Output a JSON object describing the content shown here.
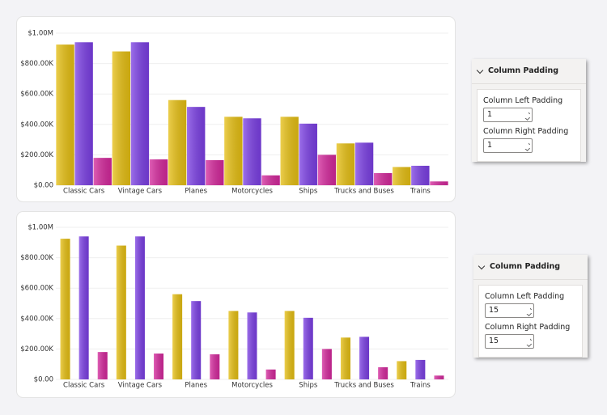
{
  "chart_data": [
    {
      "type": "bar",
      "categories": [
        "Classic Cars",
        "Vintage Cars",
        "Planes",
        "Motorcycles",
        "Ships",
        "Trucks and Buses",
        "Trains"
      ],
      "series": [
        {
          "color": "#e6bf12",
          "values": [
            925000,
            880000,
            560000,
            450000,
            450000,
            275000,
            120000
          ]
        },
        {
          "color": "#7b3fe4",
          "values": [
            940000,
            940000,
            515000,
            440000,
            405000,
            280000,
            128000
          ]
        },
        {
          "color": "#d4289c",
          "values": [
            180000,
            170000,
            165000,
            65000,
            200000,
            80000,
            25000
          ]
        }
      ],
      "ylim": [
        0,
        1000000
      ],
      "yticks": [
        {
          "value": 0,
          "label": "$0.00"
        },
        {
          "value": 200000,
          "label": "$200.00K"
        },
        {
          "value": 400000,
          "label": "$400.00K"
        },
        {
          "value": 600000,
          "label": "$600.00K"
        },
        {
          "value": 800000,
          "label": "$800.00K"
        },
        {
          "value": 1000000,
          "label": "$1.00M"
        }
      ],
      "grid": true
    },
    {
      "type": "bar",
      "categories": [
        "Classic Cars",
        "Vintage Cars",
        "Planes",
        "Motorcycles",
        "Ships",
        "Trucks and Buses",
        "Trains"
      ],
      "series": [
        {
          "color": "#e6bf12",
          "values": [
            925000,
            880000,
            560000,
            450000,
            450000,
            275000,
            120000
          ]
        },
        {
          "color": "#7b3fe4",
          "values": [
            940000,
            940000,
            515000,
            440000,
            405000,
            280000,
            128000
          ]
        },
        {
          "color": "#d4289c",
          "values": [
            180000,
            170000,
            165000,
            65000,
            200000,
            80000,
            25000
          ]
        }
      ],
      "ylim": [
        0,
        1000000
      ],
      "yticks": [
        {
          "value": 0,
          "label": "$0.00"
        },
        {
          "value": 200000,
          "label": "$200.00K"
        },
        {
          "value": 400000,
          "label": "$400.00K"
        },
        {
          "value": 600000,
          "label": "$600.00K"
        },
        {
          "value": 800000,
          "label": "$800.00K"
        },
        {
          "value": 1000000,
          "label": "$1.00M"
        }
      ],
      "grid": true
    }
  ],
  "panels": [
    {
      "title": "Column Padding",
      "fields": [
        {
          "label": "Column Left Padding",
          "value": 1
        },
        {
          "label": "Column Right Padding",
          "value": 1
        }
      ]
    },
    {
      "title": "Column Padding",
      "fields": [
        {
          "label": "Column Left Padding",
          "value": 15
        },
        {
          "label": "Column Right Padding",
          "value": 15
        }
      ]
    }
  ]
}
